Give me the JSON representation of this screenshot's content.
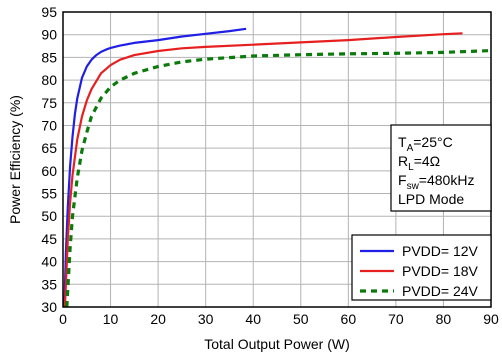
{
  "chart_data": {
    "type": "line",
    "xlabel": "Total Output Power (W)",
    "ylabel": "Power Efficiency (%)",
    "xlim": [
      0,
      90
    ],
    "ylim": [
      30,
      95
    ],
    "x_ticks": [
      "0",
      "10",
      "20",
      "30",
      "40",
      "50",
      "60",
      "70",
      "80",
      "90"
    ],
    "y_ticks": [
      "30",
      "35",
      "40",
      "45",
      "50",
      "55",
      "60",
      "65",
      "70",
      "75",
      "80",
      "85",
      "90",
      "95"
    ],
    "grid": true,
    "legend_position": "bottom-right",
    "conditions": {
      "ta": {
        "main": "T",
        "sub": "A",
        "rest": "=25°C"
      },
      "rl": {
        "main": "R",
        "sub": "L",
        "rest": "=4Ω"
      },
      "fsw": {
        "main": "F",
        "sub": "sw",
        "rest": "=480kHz"
      },
      "mode": "LPD Mode"
    },
    "series": [
      {
        "name": "PVDD= 12V",
        "color": "#1f1fe6",
        "dash": "solid",
        "x": [
          0.3,
          0.6,
          1,
          1.5,
          2,
          2.5,
          3,
          4,
          5,
          6,
          7,
          8,
          9,
          10,
          12,
          15,
          20,
          25,
          30,
          35,
          38.5
        ],
        "y": [
          30,
          42,
          52,
          61,
          67.5,
          72.5,
          76,
          80.5,
          83,
          84.5,
          85.5,
          86.2,
          86.7,
          87.1,
          87.6,
          88.2,
          88.8,
          89.6,
          90.2,
          90.8,
          91.3
        ]
      },
      {
        "name": "PVDD= 18V",
        "color": "#e61f1f",
        "dash": "solid",
        "x": [
          0.4,
          1,
          1.5,
          2,
          3,
          4,
          5,
          6,
          8,
          10,
          12,
          15,
          20,
          25,
          30,
          40,
          50,
          60,
          70,
          80,
          84
        ],
        "y": [
          30,
          45,
          53,
          59,
          67,
          72,
          75.5,
          78,
          81.5,
          83.3,
          84.5,
          85.5,
          86.4,
          87,
          87.3,
          87.8,
          88.3,
          88.8,
          89.5,
          90.1,
          90.3
        ]
      },
      {
        "name": "PVDD= 24V",
        "color": "#0a7a0a",
        "dash": "dashed",
        "x": [
          0.8,
          1.5,
          2,
          3,
          4,
          5,
          6,
          8,
          10,
          12,
          15,
          20,
          25,
          30,
          40,
          50,
          60,
          70,
          80,
          90
        ],
        "y": [
          30,
          43,
          50,
          58.5,
          64.5,
          68.5,
          72,
          76,
          78.5,
          80,
          81.5,
          83,
          84,
          84.6,
          85.3,
          85.6,
          85.8,
          85.9,
          86.1,
          86.5
        ]
      }
    ]
  }
}
